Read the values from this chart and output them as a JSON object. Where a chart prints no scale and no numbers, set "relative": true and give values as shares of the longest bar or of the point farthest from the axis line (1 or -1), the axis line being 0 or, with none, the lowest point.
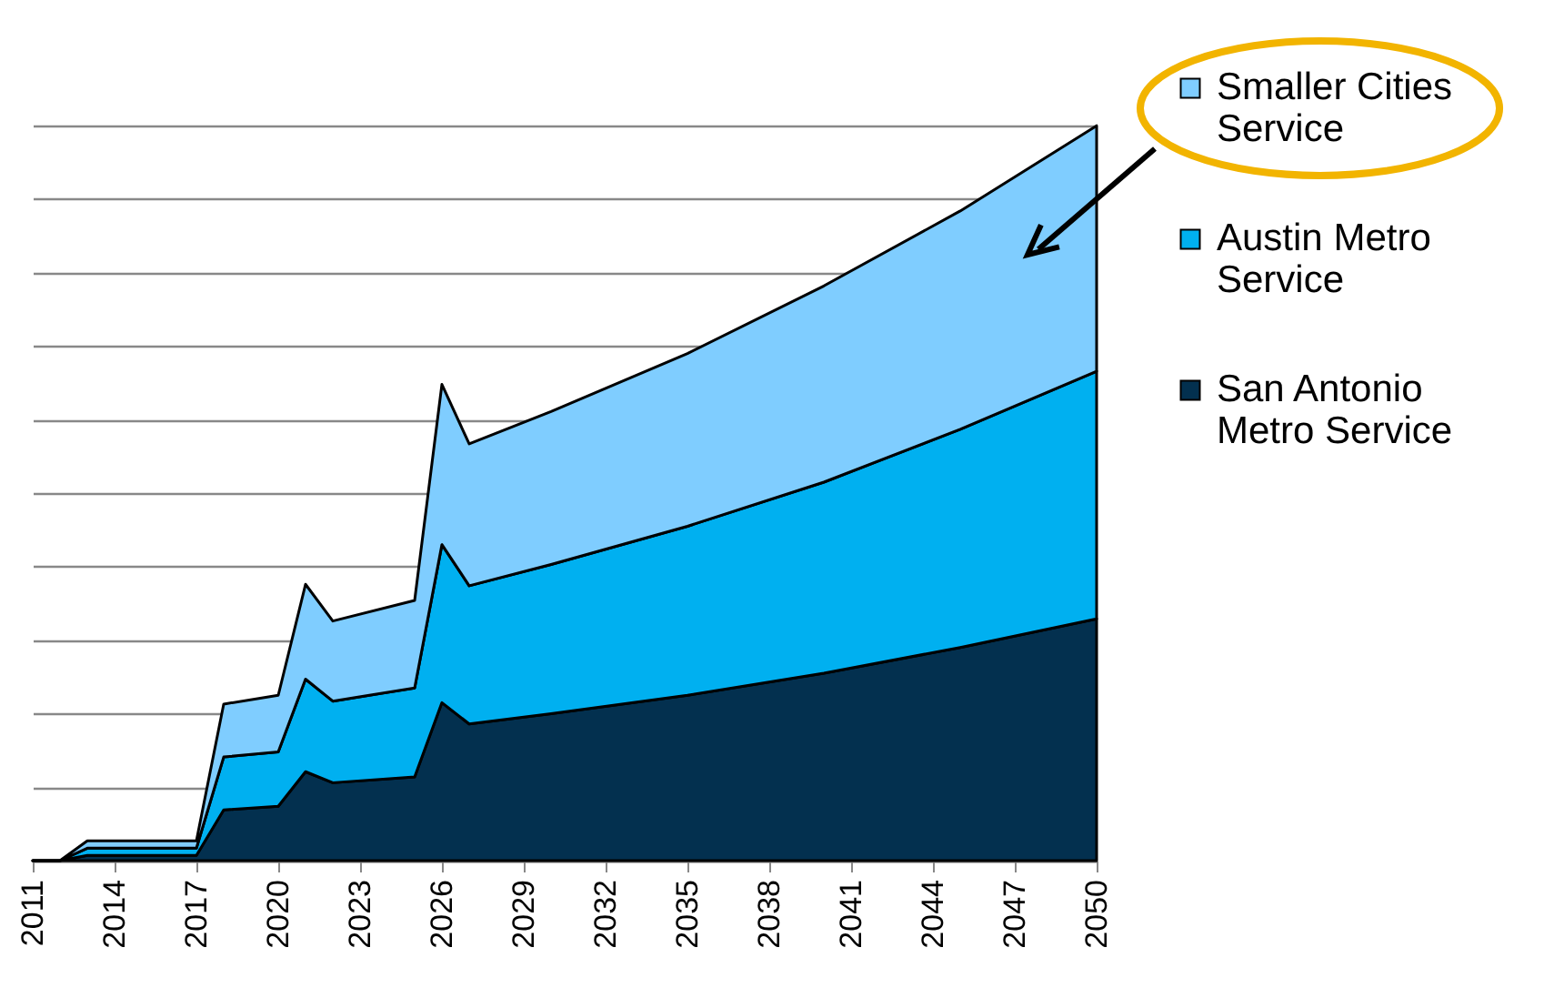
{
  "chart_data": {
    "type": "area",
    "stacked": true,
    "relative": true,
    "grid": "y",
    "legend": "right",
    "x": [
      2011,
      2012,
      2013,
      2017,
      2018,
      2020,
      2021,
      2022,
      2025,
      2026,
      2027,
      2030,
      2035,
      2040,
      2045,
      2050
    ],
    "xlim": [
      2011,
      2050
    ],
    "xticks": [
      2011,
      2014,
      2017,
      2020,
      2023,
      2026,
      2029,
      2032,
      2035,
      2038,
      2041,
      2044,
      2047,
      2050
    ],
    "series": [
      {
        "name": "San Antonio Metro Service",
        "color": "#03304f",
        "values": [
          0,
          0,
          0.007,
          0.007,
          0.069,
          0.074,
          0.121,
          0.106,
          0.114,
          0.215,
          0.186,
          0.2,
          0.225,
          0.255,
          0.29,
          0.329
        ]
      },
      {
        "name": "Austin Metro Service",
        "color": "#00b0f0",
        "values": [
          0,
          0,
          0.01,
          0.01,
          0.072,
          0.074,
          0.126,
          0.111,
          0.121,
          0.215,
          0.188,
          0.203,
          0.23,
          0.26,
          0.297,
          0.337
        ]
      },
      {
        "name": "Smaller Cities Service",
        "color": "#7fcdff",
        "values": [
          0,
          0,
          0.01,
          0.01,
          0.072,
          0.077,
          0.129,
          0.109,
          0.119,
          0.218,
          0.193,
          0.208,
          0.235,
          0.267,
          0.297,
          0.334
        ]
      }
    ]
  }
}
